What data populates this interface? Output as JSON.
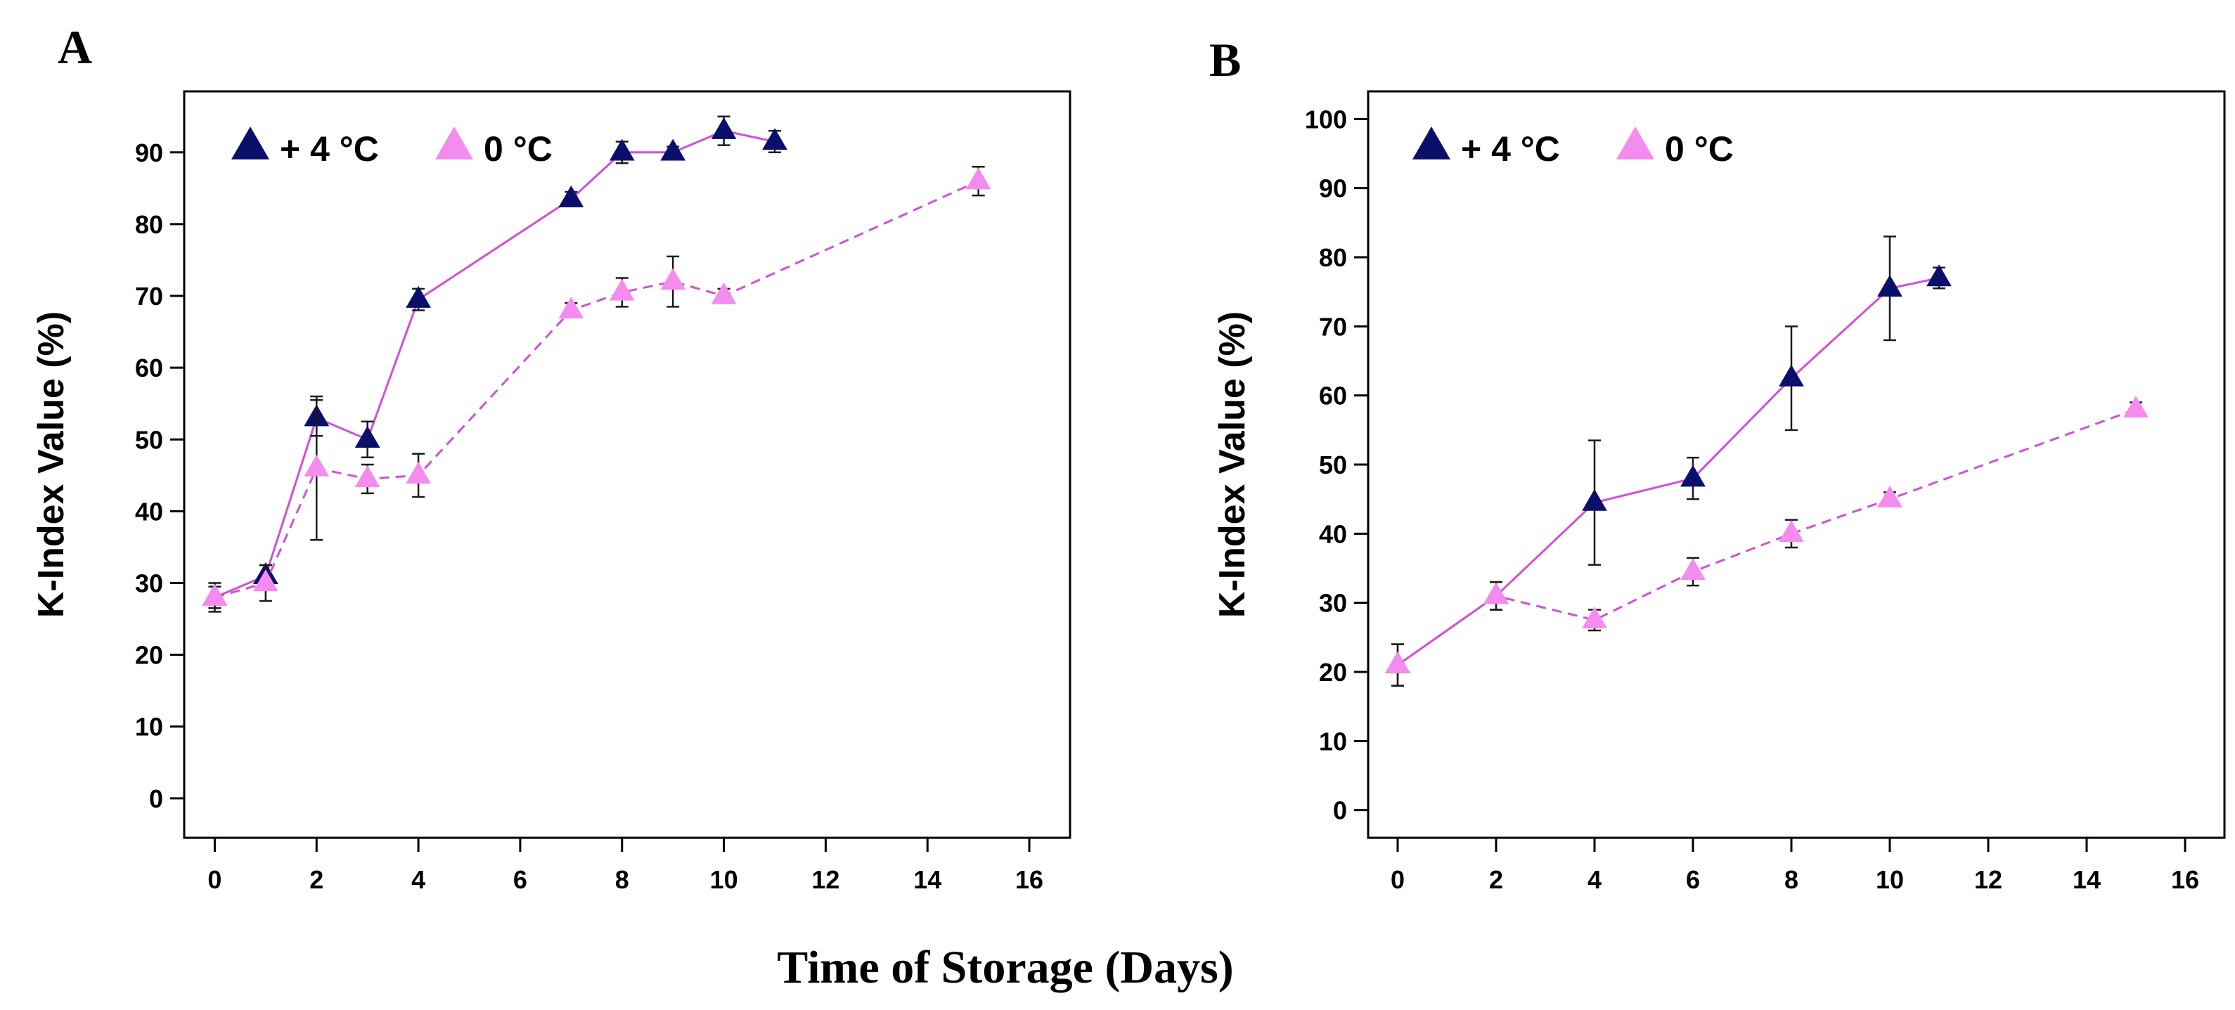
{
  "shared_xlabel": "Time of Storage (Days)",
  "colors": {
    "series_4c_marker": "#0a0f6b",
    "series_0c_marker": "#f48cf0",
    "line": "#d24fd6",
    "error_bar": "#1a1a1a"
  },
  "chart_data": [
    {
      "panel": "A",
      "type": "line",
      "title": "",
      "xlabel": "Time of Storage (Days)",
      "ylabel": "K-Index Value (%)",
      "xlim": [
        -0.6,
        16.8
      ],
      "ylim": [
        -5.5,
        98.5
      ],
      "xticks": [
        0,
        2,
        4,
        6,
        8,
        10,
        12,
        14,
        16
      ],
      "yticks": [
        0,
        10,
        20,
        30,
        40,
        50,
        60,
        70,
        80,
        90
      ],
      "grid": false,
      "legend": "top-left",
      "series": [
        {
          "name": "+ 4 °C",
          "marker_color": "#0a0f6b",
          "line_style": "solid",
          "x": [
            0,
            1,
            2,
            3,
            4,
            7,
            8,
            9,
            10,
            11
          ],
          "y": [
            28,
            31,
            53,
            50,
            69.5,
            83.5,
            90,
            90,
            93,
            91.5
          ],
          "err": [
            1.5,
            1.5,
            2.5,
            2.5,
            1.5,
            1,
            1.5,
            0.8,
            2,
            1.5
          ]
        },
        {
          "name": "0 °C",
          "marker_color": "#f48cf0",
          "line_style": "dashed",
          "x": [
            0,
            1,
            2,
            3,
            4,
            7,
            8,
            9,
            10,
            15
          ],
          "y": [
            28,
            30,
            46,
            44.5,
            45,
            68,
            70.5,
            72,
            70,
            86
          ],
          "err": [
            2,
            2.5,
            10,
            2,
            3,
            1,
            2,
            3.5,
            1,
            2
          ]
        }
      ]
    },
    {
      "panel": "B",
      "type": "line",
      "title": "",
      "xlabel": "Time of Storage (Days)",
      "ylabel": "K-Index Value (%)",
      "xlim": [
        -0.6,
        16.8
      ],
      "ylim": [
        -4,
        104
      ],
      "xticks": [
        0,
        2,
        4,
        6,
        8,
        10,
        12,
        14,
        16
      ],
      "yticks": [
        0,
        10,
        20,
        30,
        40,
        50,
        60,
        70,
        80,
        90,
        100
      ],
      "grid": false,
      "legend": "top-left",
      "series": [
        {
          "name": "+ 4 °C",
          "marker_color": "#0a0f6b",
          "line_style": "solid",
          "x": [
            0,
            2,
            4,
            6,
            8,
            10,
            11
          ],
          "y": [
            21,
            31,
            44.5,
            48,
            62.5,
            75.5,
            77
          ],
          "err": [
            3,
            2,
            9,
            3,
            7.5,
            7.5,
            1.5
          ]
        },
        {
          "name": "0 °C",
          "marker_color": "#f48cf0",
          "line_style": "dashed",
          "x": [
            0,
            2,
            4,
            6,
            8,
            10,
            15
          ],
          "y": [
            21,
            31,
            27.5,
            34.5,
            40,
            45,
            58
          ],
          "err": [
            3,
            2,
            1.5,
            2,
            2,
            1,
            1
          ]
        }
      ]
    }
  ]
}
